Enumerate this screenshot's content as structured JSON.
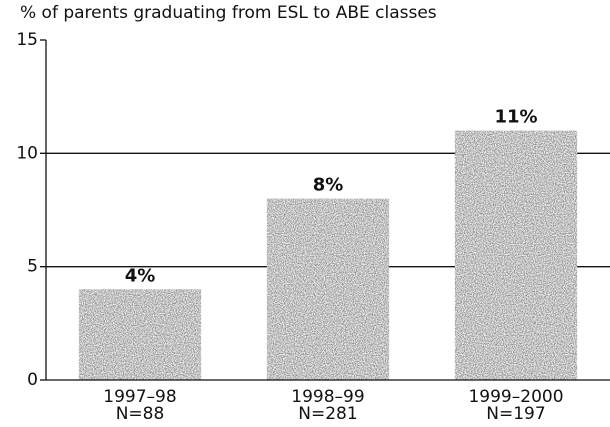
{
  "chart_data": {
    "type": "bar",
    "title": "% of parents graduating from ESL to ABE classes",
    "categories": [
      "1997–98",
      "1998–99",
      "1999–2000"
    ],
    "sample_sizes": [
      "N=88",
      "N=281",
      "N=197"
    ],
    "values": [
      4,
      8,
      11
    ],
    "value_labels": [
      "4%",
      "8%",
      "11%"
    ],
    "color": "#8c8c8c",
    "ylim": [
      0,
      15
    ],
    "yticks": [
      0,
      5,
      10,
      15
    ],
    "grid": true
  }
}
